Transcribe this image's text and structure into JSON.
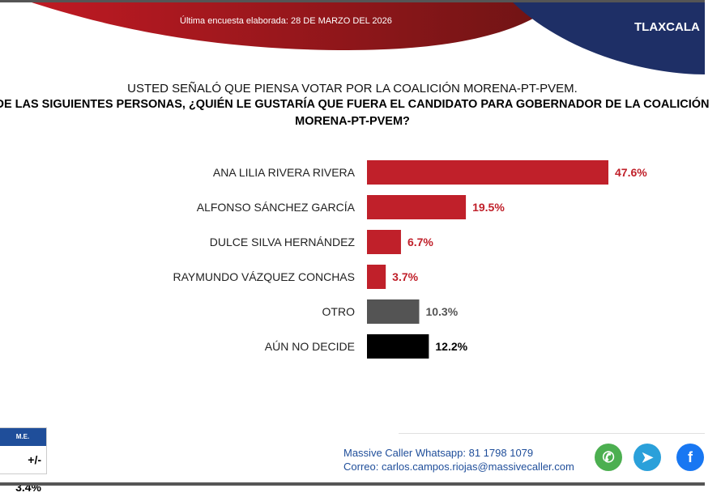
{
  "header": {
    "date_text": "Última encuesta elaborada: 28 DE MARZO DEL 2026",
    "state": "TLAXCALA",
    "red": "#b5161f",
    "blue": "#1e2f66"
  },
  "question": {
    "line1": "USTED SEÑALÓ QUE PIENSA VOTAR POR LA COALICIÓN MORENA-PT-PVEM.",
    "line2": "DE LAS SIGUIENTES PERSONAS, ¿QUIÉN LE GUSTARÍA QUE FUERA EL CANDIDATO PARA GOBERNADOR DE LA COALICIÓN",
    "line3": "MORENA-PT-PVEM?"
  },
  "chart_data": {
    "type": "bar",
    "orientation": "horizontal",
    "categories": [
      "ANA LILIA RIVERA RIVERA",
      "ALFONSO SÁNCHEZ GARCÍA",
      "DULCE SILVA HERNÁNDEZ",
      "RAYMUNDO VÁZQUEZ CONCHAS",
      "OTRO",
      "AÚN NO DECIDE"
    ],
    "values": [
      47.6,
      19.5,
      6.7,
      3.7,
      10.3,
      12.2
    ],
    "labels": [
      "47.6%",
      "19.5%",
      "6.7%",
      "3.7%",
      "10.3%",
      "12.2%"
    ],
    "colors": [
      "#c0202a",
      "#c0202a",
      "#c0202a",
      "#c0202a",
      "#545454",
      "#000000"
    ],
    "grid": false
  },
  "margin_of_error": {
    "label": "M.E.",
    "value": "+/- 3.4%"
  },
  "contact": {
    "whatsapp": "Massive Caller Whatsapp: 81 1798 1079",
    "email": "Correo: carlos.campos.riojas@massivecaller.com"
  },
  "social": [
    {
      "icon": "whatsapp-icon",
      "color": "#4caf50"
    },
    {
      "icon": "telegram-icon",
      "color": "#2aa0da"
    },
    {
      "icon": "facebook-icon",
      "color": "#1877f2"
    }
  ]
}
